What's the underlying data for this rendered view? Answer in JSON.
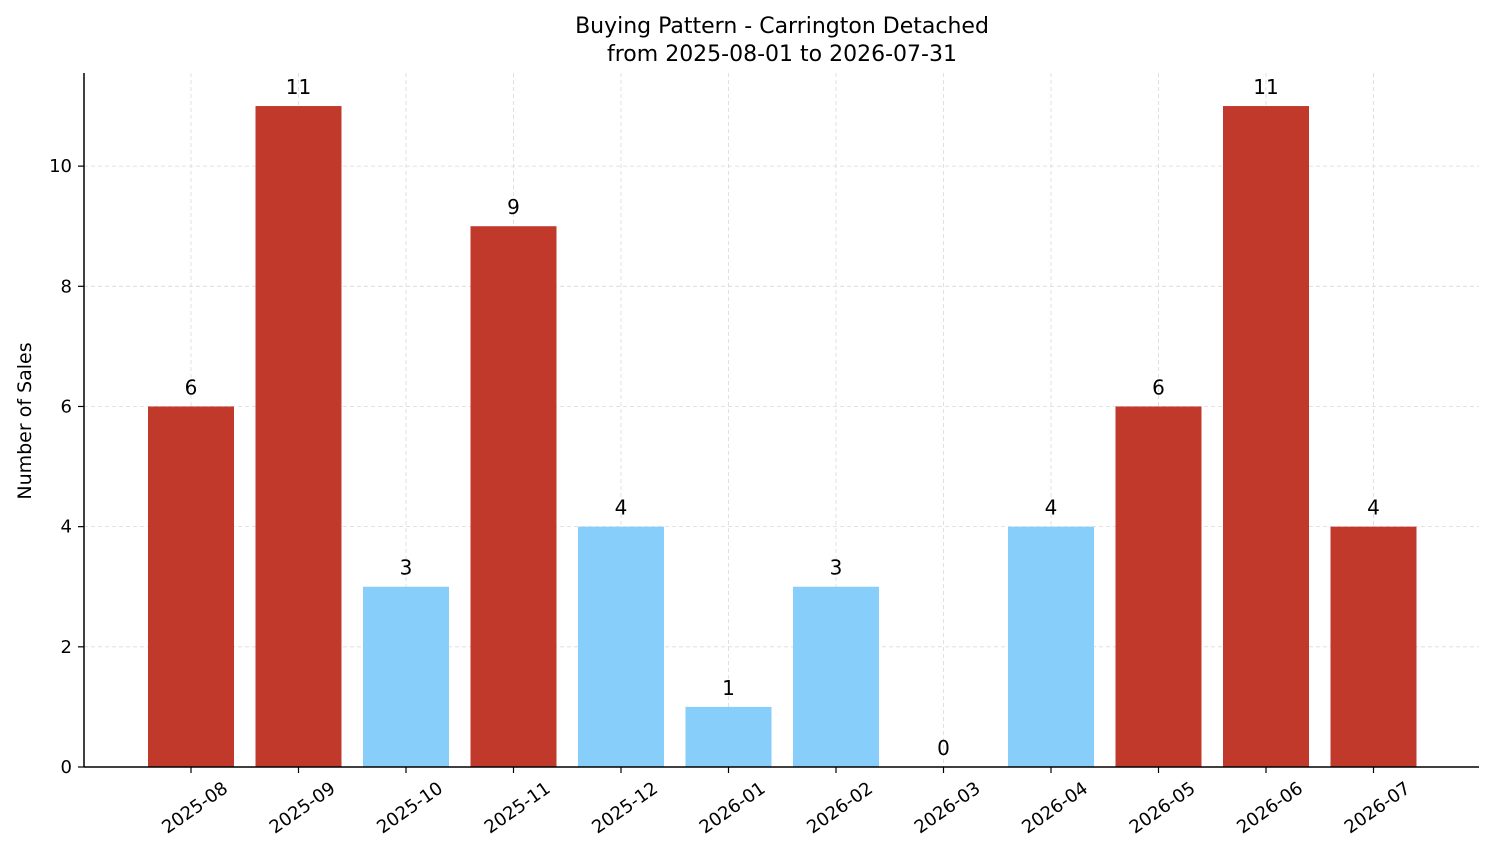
{
  "chart_data": {
    "type": "bar",
    "title": "Buying Pattern - Carrington Detached",
    "subtitle": "from 2025-08-01 to 2026-07-31",
    "xlabel": "",
    "ylabel": "Number of Sales",
    "categories": [
      "2025-08",
      "2025-09",
      "2025-10",
      "2025-11",
      "2025-12",
      "2026-01",
      "2026-02",
      "2026-03",
      "2026-04",
      "2026-05",
      "2026-06",
      "2026-07"
    ],
    "values": [
      6,
      11,
      3,
      9,
      4,
      1,
      3,
      0,
      4,
      6,
      11,
      4
    ],
    "value_labels": [
      "6",
      "11",
      "3",
      "9",
      "4",
      "1",
      "3",
      "0",
      "4",
      "6",
      "11",
      "4"
    ],
    "bar_colors": [
      "#c0392b",
      "#c0392b",
      "#87cefa",
      "#c0392b",
      "#87cefa",
      "#87cefa",
      "#87cefa",
      "#87cefa",
      "#87cefa",
      "#c0392b",
      "#c0392b",
      "#c0392b"
    ],
    "ylim": [
      0,
      11.55
    ],
    "yticks": [
      0,
      2,
      4,
      6,
      8,
      10
    ],
    "ytick_labels": [
      "0",
      "2",
      "4",
      "6",
      "8",
      "10"
    ],
    "grid": true,
    "legend": false
  }
}
